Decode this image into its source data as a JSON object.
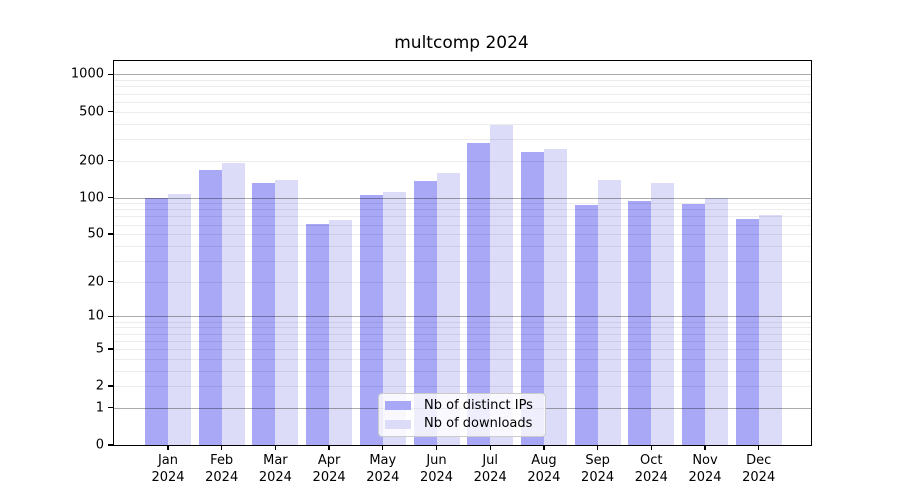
{
  "chart_data": {
    "type": "bar",
    "title": "multcomp 2024",
    "scale": "log-like (position proportional to log10(1+x))",
    "categories": [
      "Jan",
      "Feb",
      "Mar",
      "Apr",
      "May",
      "Jun",
      "Jul",
      "Aug",
      "Sep",
      "Oct",
      "Nov",
      "Dec"
    ],
    "year_suffix": "2024",
    "series": [
      {
        "name": "Nb of distinct IPs",
        "color": "#a8a8f6",
        "values": [
          100,
          168,
          132,
          61,
          105,
          137,
          278,
          237,
          87,
          93,
          88,
          67
        ]
      },
      {
        "name": "Nb of downloads",
        "color": "#dcdcf8",
        "values": [
          106,
          190,
          140,
          66,
          110,
          160,
          390,
          250,
          140,
          131,
          100,
          72
        ]
      }
    ],
    "y_ticks": [
      1000,
      500,
      200,
      100,
      50,
      20,
      10,
      5,
      2,
      1,
      0
    ],
    "ylim": [
      0,
      1285
    ],
    "grid": {
      "major_lines": [
        1,
        10,
        100,
        1000
      ],
      "minor_lines": [
        2,
        3,
        4,
        5,
        6,
        7,
        8,
        9,
        20,
        30,
        40,
        50,
        60,
        70,
        80,
        90,
        200,
        300,
        400,
        500,
        600,
        700,
        800,
        900
      ]
    },
    "legend_position": "inside lower-center",
    "xlabel": "",
    "ylabel": ""
  }
}
